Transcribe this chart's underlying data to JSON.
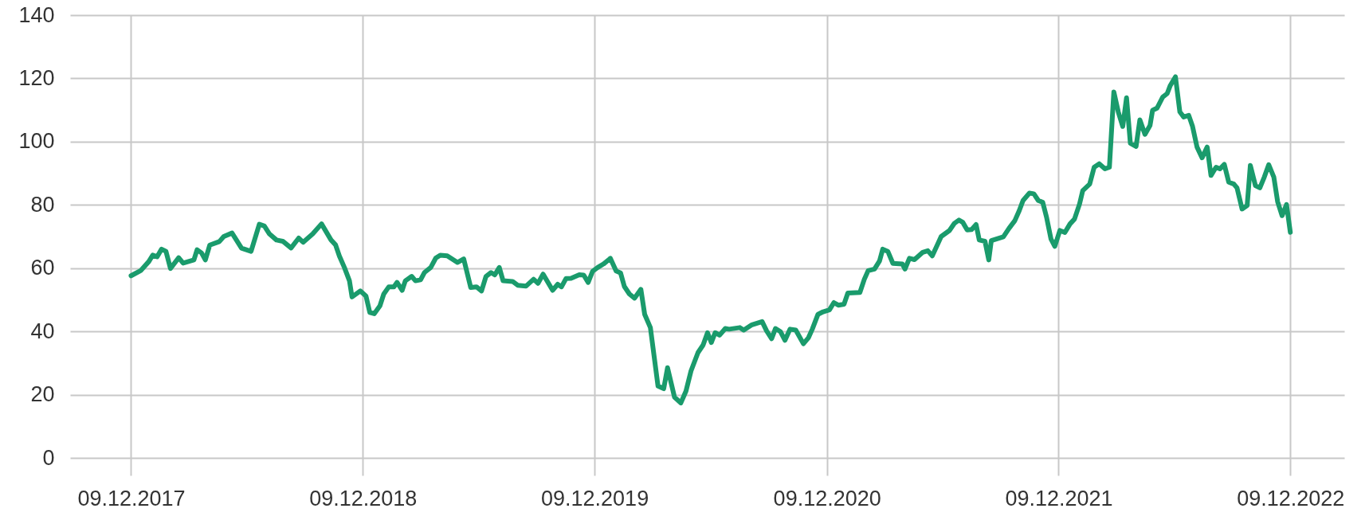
{
  "chart_data": {
    "type": "line",
    "color": "#1a9b6c",
    "grid": true,
    "xlim": [
      "2017-09-04",
      "2023-03-04"
    ],
    "xticks": [
      {
        "value": "2017-12-09",
        "label": "09.12.2017"
      },
      {
        "value": "2018-12-09",
        "label": "09.12.2018"
      },
      {
        "value": "2019-12-09",
        "label": "09.12.2019"
      },
      {
        "value": "2020-12-09",
        "label": "09.12.2020"
      },
      {
        "value": "2021-12-09",
        "label": "09.12.2021"
      },
      {
        "value": "2022-12-09",
        "label": "09.12.2022"
      }
    ],
    "ylim": [
      0,
      140
    ],
    "yticks": [
      0,
      20,
      40,
      60,
      80,
      100,
      120,
      140
    ],
    "x": [
      "2017-12-09",
      "2017-12-24",
      "2018-01-06",
      "2018-01-12",
      "2018-01-19",
      "2018-01-26",
      "2018-02-02",
      "2018-02-09",
      "2018-02-22",
      "2018-03-01",
      "2018-03-18",
      "2018-03-23",
      "2018-03-30",
      "2018-04-05",
      "2018-04-12",
      "2018-04-27",
      "2018-05-04",
      "2018-05-17",
      "2018-06-01",
      "2018-06-16",
      "2018-06-29",
      "2018-07-07",
      "2018-07-15",
      "2018-07-26",
      "2018-08-05",
      "2018-08-18",
      "2018-08-30",
      "2018-09-06",
      "2018-09-21",
      "2018-10-05",
      "2018-10-20",
      "2018-10-27",
      "2018-11-02",
      "2018-11-10",
      "2018-11-18",
      "2018-11-22",
      "2018-12-05",
      "2018-12-14",
      "2018-12-20",
      "2018-12-27",
      "2019-01-05",
      "2019-01-11",
      "2019-01-19",
      "2019-01-27",
      "2019-02-01",
      "2019-02-09",
      "2019-02-14",
      "2019-02-24",
      "2019-03-02",
      "2019-03-10",
      "2019-03-16",
      "2019-03-26",
      "2019-04-03",
      "2019-04-10",
      "2019-04-21",
      "2019-05-07",
      "2019-05-17",
      "2019-05-28",
      "2019-06-06",
      "2019-06-14",
      "2019-06-21",
      "2019-06-29",
      "2019-07-05",
      "2019-07-12",
      "2019-07-18",
      "2019-08-02",
      "2019-08-10",
      "2019-08-23",
      "2019-09-04",
      "2019-09-11",
      "2019-09-19",
      "2019-10-04",
      "2019-10-12",
      "2019-10-18",
      "2019-10-25",
      "2019-11-02",
      "2019-11-15",
      "2019-11-22",
      "2019-11-29",
      "2019-12-06",
      "2019-12-14",
      "2019-12-23",
      "2020-01-03",
      "2020-01-12",
      "2020-01-19",
      "2020-01-25",
      "2020-02-02",
      "2020-02-10",
      "2020-02-20",
      "2020-02-26",
      "2020-03-06",
      "2020-03-18",
      "2020-03-27",
      "2020-04-02",
      "2020-04-13",
      "2020-04-23",
      "2020-05-01",
      "2020-05-09",
      "2020-05-20",
      "2020-05-28",
      "2020-06-04",
      "2020-06-10",
      "2020-06-16",
      "2020-06-23",
      "2020-07-02",
      "2020-07-08",
      "2020-07-25",
      "2020-07-31",
      "2020-08-13",
      "2020-08-29",
      "2020-09-05",
      "2020-09-13",
      "2020-09-19",
      "2020-09-27",
      "2020-10-04",
      "2020-10-12",
      "2020-10-21",
      "2020-11-02",
      "2020-11-10",
      "2020-11-16",
      "2020-11-25",
      "2020-12-03",
      "2020-12-13",
      "2020-12-20",
      "2020-12-27",
      "2021-01-05",
      "2021-01-11",
      "2021-01-30",
      "2021-02-06",
      "2021-02-12",
      "2021-02-22",
      "2021-03-02",
      "2021-03-07",
      "2021-03-15",
      "2021-03-23",
      "2021-04-07",
      "2021-04-11",
      "2021-04-18",
      "2021-04-26",
      "2021-05-09",
      "2021-05-17",
      "2021-05-24",
      "2021-06-02",
      "2021-06-07",
      "2021-06-20",
      "2021-06-28",
      "2021-07-05",
      "2021-07-11",
      "2021-07-18",
      "2021-07-25",
      "2021-08-01",
      "2021-08-06",
      "2021-08-15",
      "2021-08-21",
      "2021-08-25",
      "2021-09-13",
      "2021-09-22",
      "2021-10-01",
      "2021-10-08",
      "2021-10-14",
      "2021-10-24",
      "2021-10-31",
      "2021-11-07",
      "2021-11-14",
      "2021-11-20",
      "2021-11-27",
      "2021-12-03",
      "2021-12-11",
      "2021-12-19",
      "2021-12-27",
      "2022-01-03",
      "2022-01-11",
      "2022-01-16",
      "2022-01-27",
      "2022-02-03",
      "2022-02-11",
      "2022-02-20",
      "2022-02-27",
      "2022-03-06",
      "2022-03-13",
      "2022-03-20",
      "2022-03-26",
      "2022-04-01",
      "2022-04-10",
      "2022-04-16",
      "2022-04-24",
      "2022-05-02",
      "2022-05-06",
      "2022-05-13",
      "2022-05-22",
      "2022-05-29",
      "2022-06-03",
      "2022-06-11",
      "2022-06-18",
      "2022-06-24",
      "2022-07-02",
      "2022-07-08",
      "2022-07-15",
      "2022-07-23",
      "2022-07-31",
      "2022-08-06",
      "2022-08-14",
      "2022-08-20",
      "2022-08-27",
      "2022-09-03",
      "2022-09-11",
      "2022-09-16",
      "2022-09-24",
      "2022-10-02",
      "2022-10-07",
      "2022-10-15",
      "2022-10-22",
      "2022-10-29",
      "2022-11-05",
      "2022-11-13",
      "2022-11-19",
      "2022-11-26",
      "2022-12-03",
      "2022-12-09"
    ],
    "values": [
      57.6,
      59.2,
      62.1,
      64.1,
      63.6,
      66.0,
      65.3,
      59.9,
      63.3,
      61.6,
      62.6,
      65.8,
      64.8,
      62.6,
      67.3,
      68.4,
      70.0,
      71.1,
      66.3,
      65.3,
      73.9,
      73.3,
      70.8,
      68.9,
      68.5,
      66.4,
      69.5,
      68.2,
      70.8,
      74.0,
      68.9,
      67.4,
      63.9,
      60.2,
      56.0,
      50.9,
      52.8,
      51.2,
      46.0,
      45.6,
      48.1,
      51.8,
      54.1,
      54.1,
      55.5,
      53.0,
      56.0,
      57.4,
      56.0,
      56.3,
      58.6,
      60.2,
      63.2,
      64.1,
      63.9,
      61.8,
      62.9,
      53.9,
      54.1,
      52.8,
      57.4,
      58.6,
      57.9,
      60.2,
      56.0,
      55.8,
      54.6,
      54.3,
      56.5,
      55.2,
      58.1,
      53.0,
      54.9,
      54.1,
      56.7,
      56.8,
      57.9,
      57.8,
      55.5,
      59.0,
      60.2,
      61.3,
      63.1,
      59.1,
      58.5,
      54.2,
      51.8,
      50.5,
      53.3,
      45.4,
      41.2,
      22.7,
      21.9,
      28.5,
      19.2,
      17.4,
      21.1,
      27.5,
      33.3,
      35.7,
      39.6,
      36.5,
      39.6,
      38.8,
      40.9,
      40.7,
      41.2,
      40.4,
      42.1,
      43.1,
      40.2,
      37.7,
      40.9,
      39.9,
      37.2,
      40.7,
      40.4,
      36.1,
      38.0,
      40.7,
      45.4,
      46.2,
      46.8,
      49.1,
      48.3,
      48.6,
      52.1,
      52.3,
      56.5,
      59.2,
      59.7,
      62.3,
      66.0,
      65.3,
      61.5,
      61.3,
      59.7,
      63.1,
      62.7,
      65.0,
      65.5,
      63.9,
      67.8,
      70.0,
      71.9,
      74.2,
      75.2,
      74.5,
      72.1,
      72.2,
      73.8,
      68.9,
      68.5,
      62.6,
      68.7,
      69.9,
      72.6,
      75.0,
      78.2,
      81.4,
      83.7,
      83.5,
      81.4,
      80.8,
      76.1,
      69.2,
      66.9,
      71.9,
      71.3,
      74.0,
      75.5,
      80.3,
      84.5,
      86.6,
      91.9,
      93.0,
      91.4,
      91.9,
      115.7,
      109.4,
      104.8,
      113.9,
      99.5,
      98.5,
      106.9,
      102.3,
      105.1,
      109.9,
      110.6,
      114.1,
      115.2,
      117.8,
      120.5,
      109.4,
      107.8,
      108.3,
      104.8,
      98.3,
      94.9,
      98.3,
      89.3,
      91.9,
      91.4,
      92.8,
      87.2,
      86.6,
      85.4,
      78.7,
      79.8,
      92.5,
      86.1,
      85.4,
      88.8,
      92.7,
      88.8,
      81.0,
      76.6,
      80.1,
      71.3
    ]
  }
}
